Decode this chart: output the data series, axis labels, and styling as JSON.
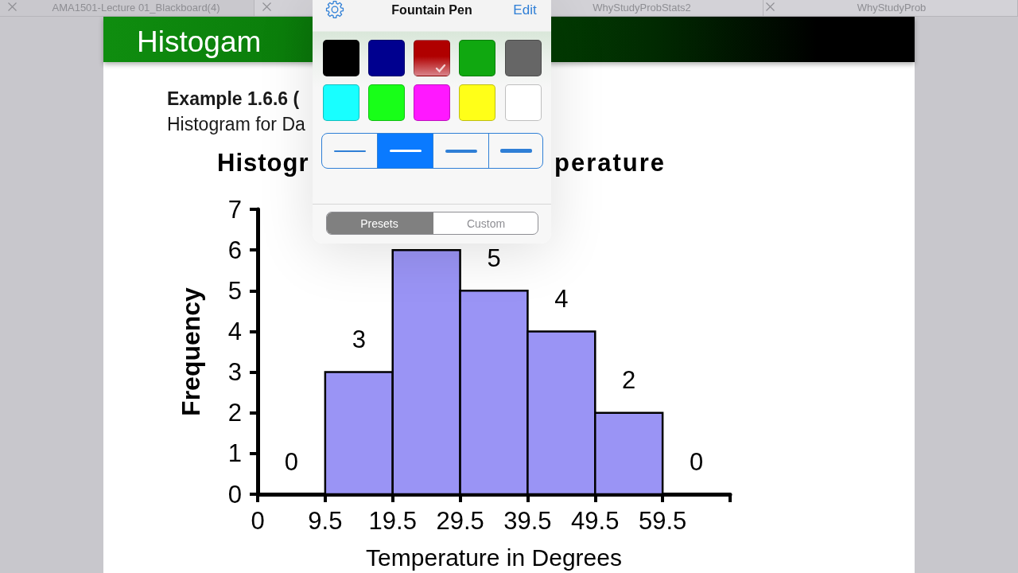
{
  "chart_data": {
    "type": "histogram",
    "title": "Histogam",
    "annotations": [
      "AMA1501-Lecture 01_Blackboard(4)",
      "WhyStudyProbStats2",
      "WhyStudyProb",
      "Example 1.6.6 (",
      "Histogram for Da",
      "Histogr",
      "perature",
      "Fountain Pen",
      "Edit",
      "Presets",
      "Custom"
    ],
    "xlabel": "Temperature in Degrees",
    "ylabel": "Frequency",
    "bins": [
      -0.5,
      9.5,
      19.5,
      29.5,
      39.5,
      49.5,
      59.5,
      69.5
    ],
    "values": [
      0,
      3,
      6,
      5,
      4,
      2,
      0
    ],
    "color": "#9a94f5",
    "value_labels": [
      "0",
      "3",
      null,
      "5",
      "4",
      "2",
      "0"
    ],
    "xlim": [
      -0.5,
      69.5
    ],
    "xticks": [
      {
        "value": -0.5,
        "label": "0"
      },
      9.5,
      19.5,
      29.5,
      39.5,
      49.5,
      59.5,
      {
        "value": 69.5,
        "label": null
      }
    ],
    "ylim": [
      0,
      7
    ],
    "yticks": [
      0,
      1,
      2,
      3,
      4,
      5,
      6,
      7
    ]
  }
}
